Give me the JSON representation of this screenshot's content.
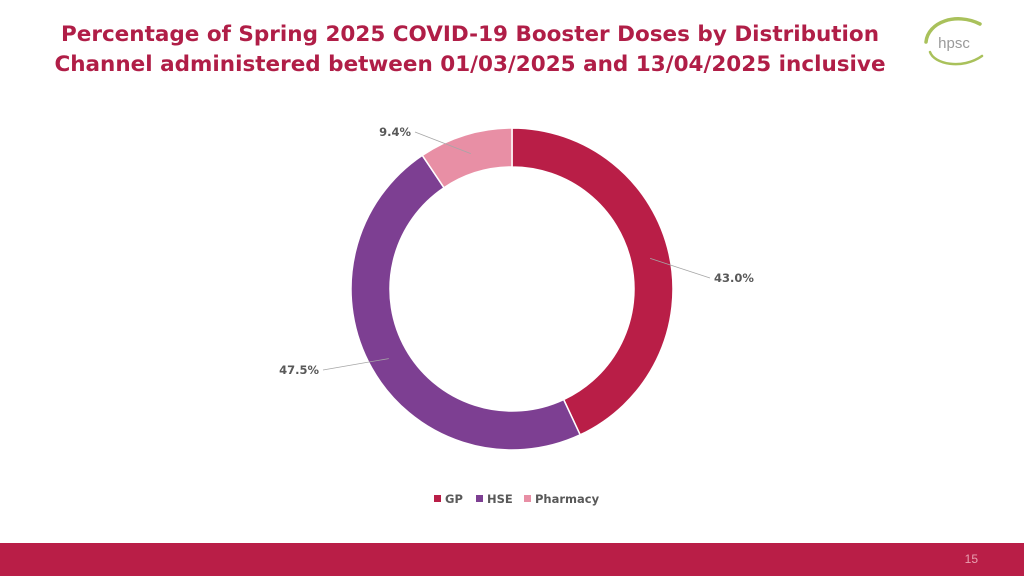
{
  "title_line1": "Percentage of Spring 2025 COVID-19 Booster Doses by Distribution",
  "title_line2": "Channel administered between 01/03/2025 and 13/04/2025 inclusive",
  "logo": {
    "text": "hpsc",
    "colors": {
      "arc": "#A9C15B",
      "text": "#9A9A9A"
    }
  },
  "page_number": "15",
  "colors": {
    "accent": "#B01E47",
    "footer": "#B91E47"
  },
  "chart_data": {
    "type": "pie",
    "variant": "donut",
    "title": "",
    "categories": [
      "GP",
      "HSE",
      "Pharmacy"
    ],
    "values": [
      43.0,
      47.5,
      9.4
    ],
    "labels": [
      "43.0%",
      "47.5%",
      "9.4%"
    ],
    "colors": [
      "#B91E47",
      "#7D3F92",
      "#E88FA5"
    ],
    "legend_position": "bottom-center",
    "start_angle": "12 o'clock",
    "direction": "clockwise"
  }
}
